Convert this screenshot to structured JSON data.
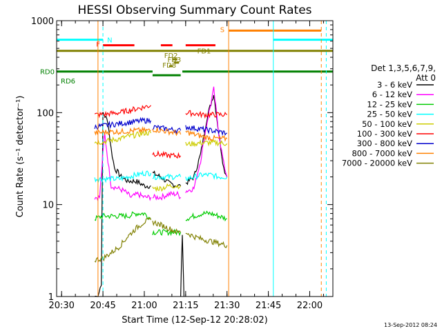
{
  "chart_data": {
    "type": "line",
    "title": "HESSI Observing Summary Count Rates",
    "xlabel": "Start Time (12-Sep-12 20:28:02)",
    "ylabel": "Count Rate (s⁻¹ detector⁻¹)",
    "yscale": "log",
    "ylim": [
      1,
      1000
    ],
    "xlim_minutes": [
      20.47,
      22.14
    ],
    "x_ticks": [
      "20:30",
      "20:45",
      "21:00",
      "21:15",
      "21:30",
      "21:45",
      "22:00"
    ],
    "x_tick_values_hours": [
      20.5,
      20.75,
      21.0,
      21.25,
      21.5,
      21.75,
      22.0
    ],
    "y_ticks": [
      "1",
      "10",
      "100",
      "1000"
    ],
    "y_tick_values": [
      1,
      10,
      100,
      1000
    ],
    "legend_title_lines": [
      "Det 1,3,5,6,7,9,",
      "Att 0"
    ],
    "legend_placement": "right",
    "timestamp": "13-Sep-2012 08:24",
    "series": [
      {
        "name": "3 - 6 keV",
        "color": "#000000",
        "segments": [
          {
            "t": [
              20.7,
              20.72,
              20.74,
              20.75,
              20.78,
              20.8,
              20.82,
              20.86,
              20.9,
              20.95,
              21.0,
              21.04
            ],
            "v": [
              1.0,
              1.0,
              1.4,
              100,
              80,
              40,
              25,
              20,
              18,
              18,
              16,
              16
            ]
          },
          {
            "t": [
              21.05,
              21.1,
              21.15,
              21.2,
              21.22
            ],
            "v": [
              22,
              20,
              17,
              16,
              16
            ]
          },
          {
            "t": [
              21.22,
              21.23,
              21.24
            ],
            "v": [
              1.0,
              5,
              1.0
            ]
          },
          {
            "t": [
              21.25,
              21.3,
              21.34,
              21.38,
              21.42,
              21.45,
              21.48,
              21.5
            ],
            "v": [
              17,
              20,
              35,
              90,
              160,
              60,
              25,
              20
            ]
          }
        ]
      },
      {
        "name": "6 - 12 keV",
        "color": "#ff00ff",
        "segments": [
          {
            "t": [
              20.7,
              20.73,
              20.76,
              20.78,
              20.8,
              20.84,
              20.88,
              20.92,
              20.96,
              21.0,
              21.04
            ],
            "v": [
              12,
              12,
              60,
              30,
              16,
              15,
              14,
              12,
              13,
              12,
              12
            ]
          },
          {
            "t": [
              21.05,
              21.1,
              21.15,
              21.2,
              21.22
            ],
            "v": [
              12,
              12,
              13,
              13,
              12
            ]
          },
          {
            "t": [
              21.25,
              21.3,
              21.34,
              21.38,
              21.42,
              21.45,
              21.48,
              21.5
            ],
            "v": [
              14,
              15,
              30,
              80,
              180,
              60,
              28,
              20
            ]
          }
        ]
      },
      {
        "name": "12 - 25 keV",
        "color": "#00cc00",
        "segments": [
          {
            "t": [
              20.7,
              20.75,
              20.8,
              20.85,
              20.9,
              20.95,
              21.0,
              21.04
            ],
            "v": [
              7,
              7.5,
              7.5,
              7.5,
              7.5,
              8,
              8,
              7
            ]
          },
          {
            "t": [
              21.05,
              21.1,
              21.15,
              21.2,
              21.22
            ],
            "v": [
              5,
              5,
              5,
              5,
              5
            ]
          },
          {
            "t": [
              21.25,
              21.3,
              21.35,
              21.4,
              21.45,
              21.5
            ],
            "v": [
              7,
              7.5,
              8,
              8,
              7.5,
              7
            ]
          }
        ]
      },
      {
        "name": "25 - 50 keV",
        "color": "#00ffff",
        "segments": [
          {
            "t": [
              20.7,
              20.75,
              20.8,
              20.85,
              20.9,
              20.95,
              21.0,
              21.04
            ],
            "v": [
              19,
              19,
              19,
              19,
              20,
              21,
              22,
              22
            ]
          },
          {
            "t": [
              21.05,
              21.1,
              21.15,
              21.2,
              21.22
            ],
            "v": [
              20,
              20,
              20,
              20,
              20
            ]
          },
          {
            "t": [
              21.25,
              21.3,
              21.35,
              21.4,
              21.45,
              21.5
            ],
            "v": [
              19,
              20,
              21,
              21,
              20,
              20
            ]
          }
        ]
      },
      {
        "name": "50 - 100 keV",
        "color": "#cccc00",
        "segments": [
          {
            "t": [
              20.7,
              20.75,
              20.8,
              20.85,
              20.9,
              20.95,
              21.0,
              21.04
            ],
            "v": [
              48,
              48,
              50,
              52,
              55,
              57,
              60,
              60
            ]
          },
          {
            "t": [
              21.05,
              21.1,
              21.15,
              21.2,
              21.22
            ],
            "v": [
              15,
              15,
              16,
              16,
              16
            ]
          },
          {
            "t": [
              21.25,
              21.3,
              21.35,
              21.4,
              21.45,
              21.5
            ],
            "v": [
              45,
              46,
              47,
              47,
              47,
              46
            ]
          }
        ]
      },
      {
        "name": "100 - 300 keV",
        "color": "#ff0000",
        "segments": [
          {
            "t": [
              20.7,
              20.75,
              20.8,
              20.85,
              20.9,
              20.95,
              21.0,
              21.04
            ],
            "v": [
              95,
              95,
              98,
              100,
              105,
              110,
              115,
              120
            ]
          },
          {
            "t": [
              21.05,
              21.1,
              21.15,
              21.2,
              21.22
            ],
            "v": [
              36,
              35,
              34,
              34,
              34
            ]
          },
          {
            "t": [
              21.25,
              21.3,
              21.35,
              21.4,
              21.45,
              21.5
            ],
            "v": [
              100,
              98,
              95,
              95,
              95,
              95
            ]
          }
        ]
      },
      {
        "name": "300 - 800 keV",
        "color": "#0000cc",
        "segments": [
          {
            "t": [
              20.7,
              20.75,
              20.8,
              20.85,
              20.9,
              20.95,
              21.0,
              21.04
            ],
            "v": [
              70,
              72,
              74,
              76,
              78,
              80,
              82,
              82
            ]
          },
          {
            "t": [
              21.05,
              21.1,
              21.15,
              21.2,
              21.22
            ],
            "v": [
              70,
              68,
              66,
              64,
              64
            ]
          },
          {
            "t": [
              21.25,
              21.3,
              21.35,
              21.4,
              21.45,
              21.5
            ],
            "v": [
              70,
              68,
              66,
              64,
              62,
              60
            ]
          }
        ]
      },
      {
        "name": "800 - 7000 keV",
        "color": "#ff8000",
        "segments": [
          {
            "t": [
              20.7,
              20.75,
              20.8,
              20.85,
              20.9,
              20.95,
              21.0,
              21.04
            ],
            "v": [
              60,
              61,
              62,
              62,
              63,
              64,
              64,
              64
            ]
          },
          {
            "t": [
              21.05,
              21.1,
              21.15,
              21.2,
              21.22
            ],
            "v": [
              66,
              64,
              62,
              60,
              58
            ]
          },
          {
            "t": [
              21.25,
              21.3,
              21.35,
              21.4,
              21.45,
              21.5
            ],
            "v": [
              62,
              58,
              55,
              53,
              52,
              52
            ]
          }
        ]
      },
      {
        "name": "7000 - 20000 keV",
        "color": "#808000",
        "segments": [
          {
            "t": [
              20.7,
              20.75,
              20.8,
              20.85,
              20.9,
              20.95,
              21.0,
              21.04
            ],
            "v": [
              2.5,
              2.6,
              3.0,
              3.5,
              4.5,
              5.5,
              6.5,
              6.8
            ]
          },
          {
            "t": [
              21.05,
              21.1,
              21.15,
              21.2,
              21.22
            ],
            "v": [
              6.5,
              6.0,
              5.5,
              5.0,
              5.0
            ]
          },
          {
            "t": [
              21.25,
              21.3,
              21.35,
              21.4,
              21.45,
              21.5
            ],
            "v": [
              5.0,
              4.5,
              4.2,
              4.0,
              3.8,
              3.6
            ]
          }
        ]
      }
    ],
    "flag_bars": [
      {
        "label": "N",
        "color": "#00ffff",
        "level": 620,
        "intervals": [
          [
            20.47,
            20.75
          ],
          [
            21.78,
            22.14
          ]
        ]
      },
      {
        "label": "S",
        "color": "#ff8000",
        "level": 780,
        "intervals": [
          [
            21.51,
            22.07
          ]
        ]
      },
      {
        "label": "F",
        "color": "#ff0000",
        "level": 540,
        "intervals": [
          [
            20.75,
            20.94
          ],
          [
            21.1,
            21.17
          ],
          [
            21.25,
            21.43
          ]
        ]
      },
      {
        "label": "FD1",
        "color": "#808000",
        "level": 470,
        "intervals": [
          [
            20.47,
            22.14
          ]
        ]
      },
      {
        "label": "FD2",
        "color": "#808000",
        "level": 380,
        "intervals": [
          [
            21.17,
            21.2
          ]
        ]
      },
      {
        "label": "FD3",
        "color": "#808000",
        "level": 350,
        "intervals": [
          [
            21.18,
            21.21
          ]
        ]
      },
      {
        "label": "FD8",
        "color": "#808000",
        "level": 320,
        "intervals": [
          [
            21.15,
            21.17
          ]
        ]
      },
      {
        "label": "RD0",
        "color": "#008000",
        "level": 280,
        "intervals": [
          [
            20.47,
            21.05
          ],
          [
            21.23,
            22.14
          ]
        ]
      },
      {
        "label": "RD6",
        "color": "#008000",
        "level": 255,
        "intervals": [
          [
            21.05,
            21.22
          ]
        ]
      }
    ],
    "vertical_markers": [
      {
        "t": 20.72,
        "color": "#ff8000",
        "style": "solid"
      },
      {
        "t": 20.75,
        "color": "#00ffff",
        "style": "dashed"
      },
      {
        "t": 21.51,
        "color": "#ff8000",
        "style": "solid"
      },
      {
        "t": 21.78,
        "color": "#00ffff",
        "style": "solid"
      },
      {
        "t": 22.07,
        "color": "#ff8000",
        "style": "dashed"
      },
      {
        "t": 22.1,
        "color": "#00ffff",
        "style": "dashed"
      }
    ]
  }
}
